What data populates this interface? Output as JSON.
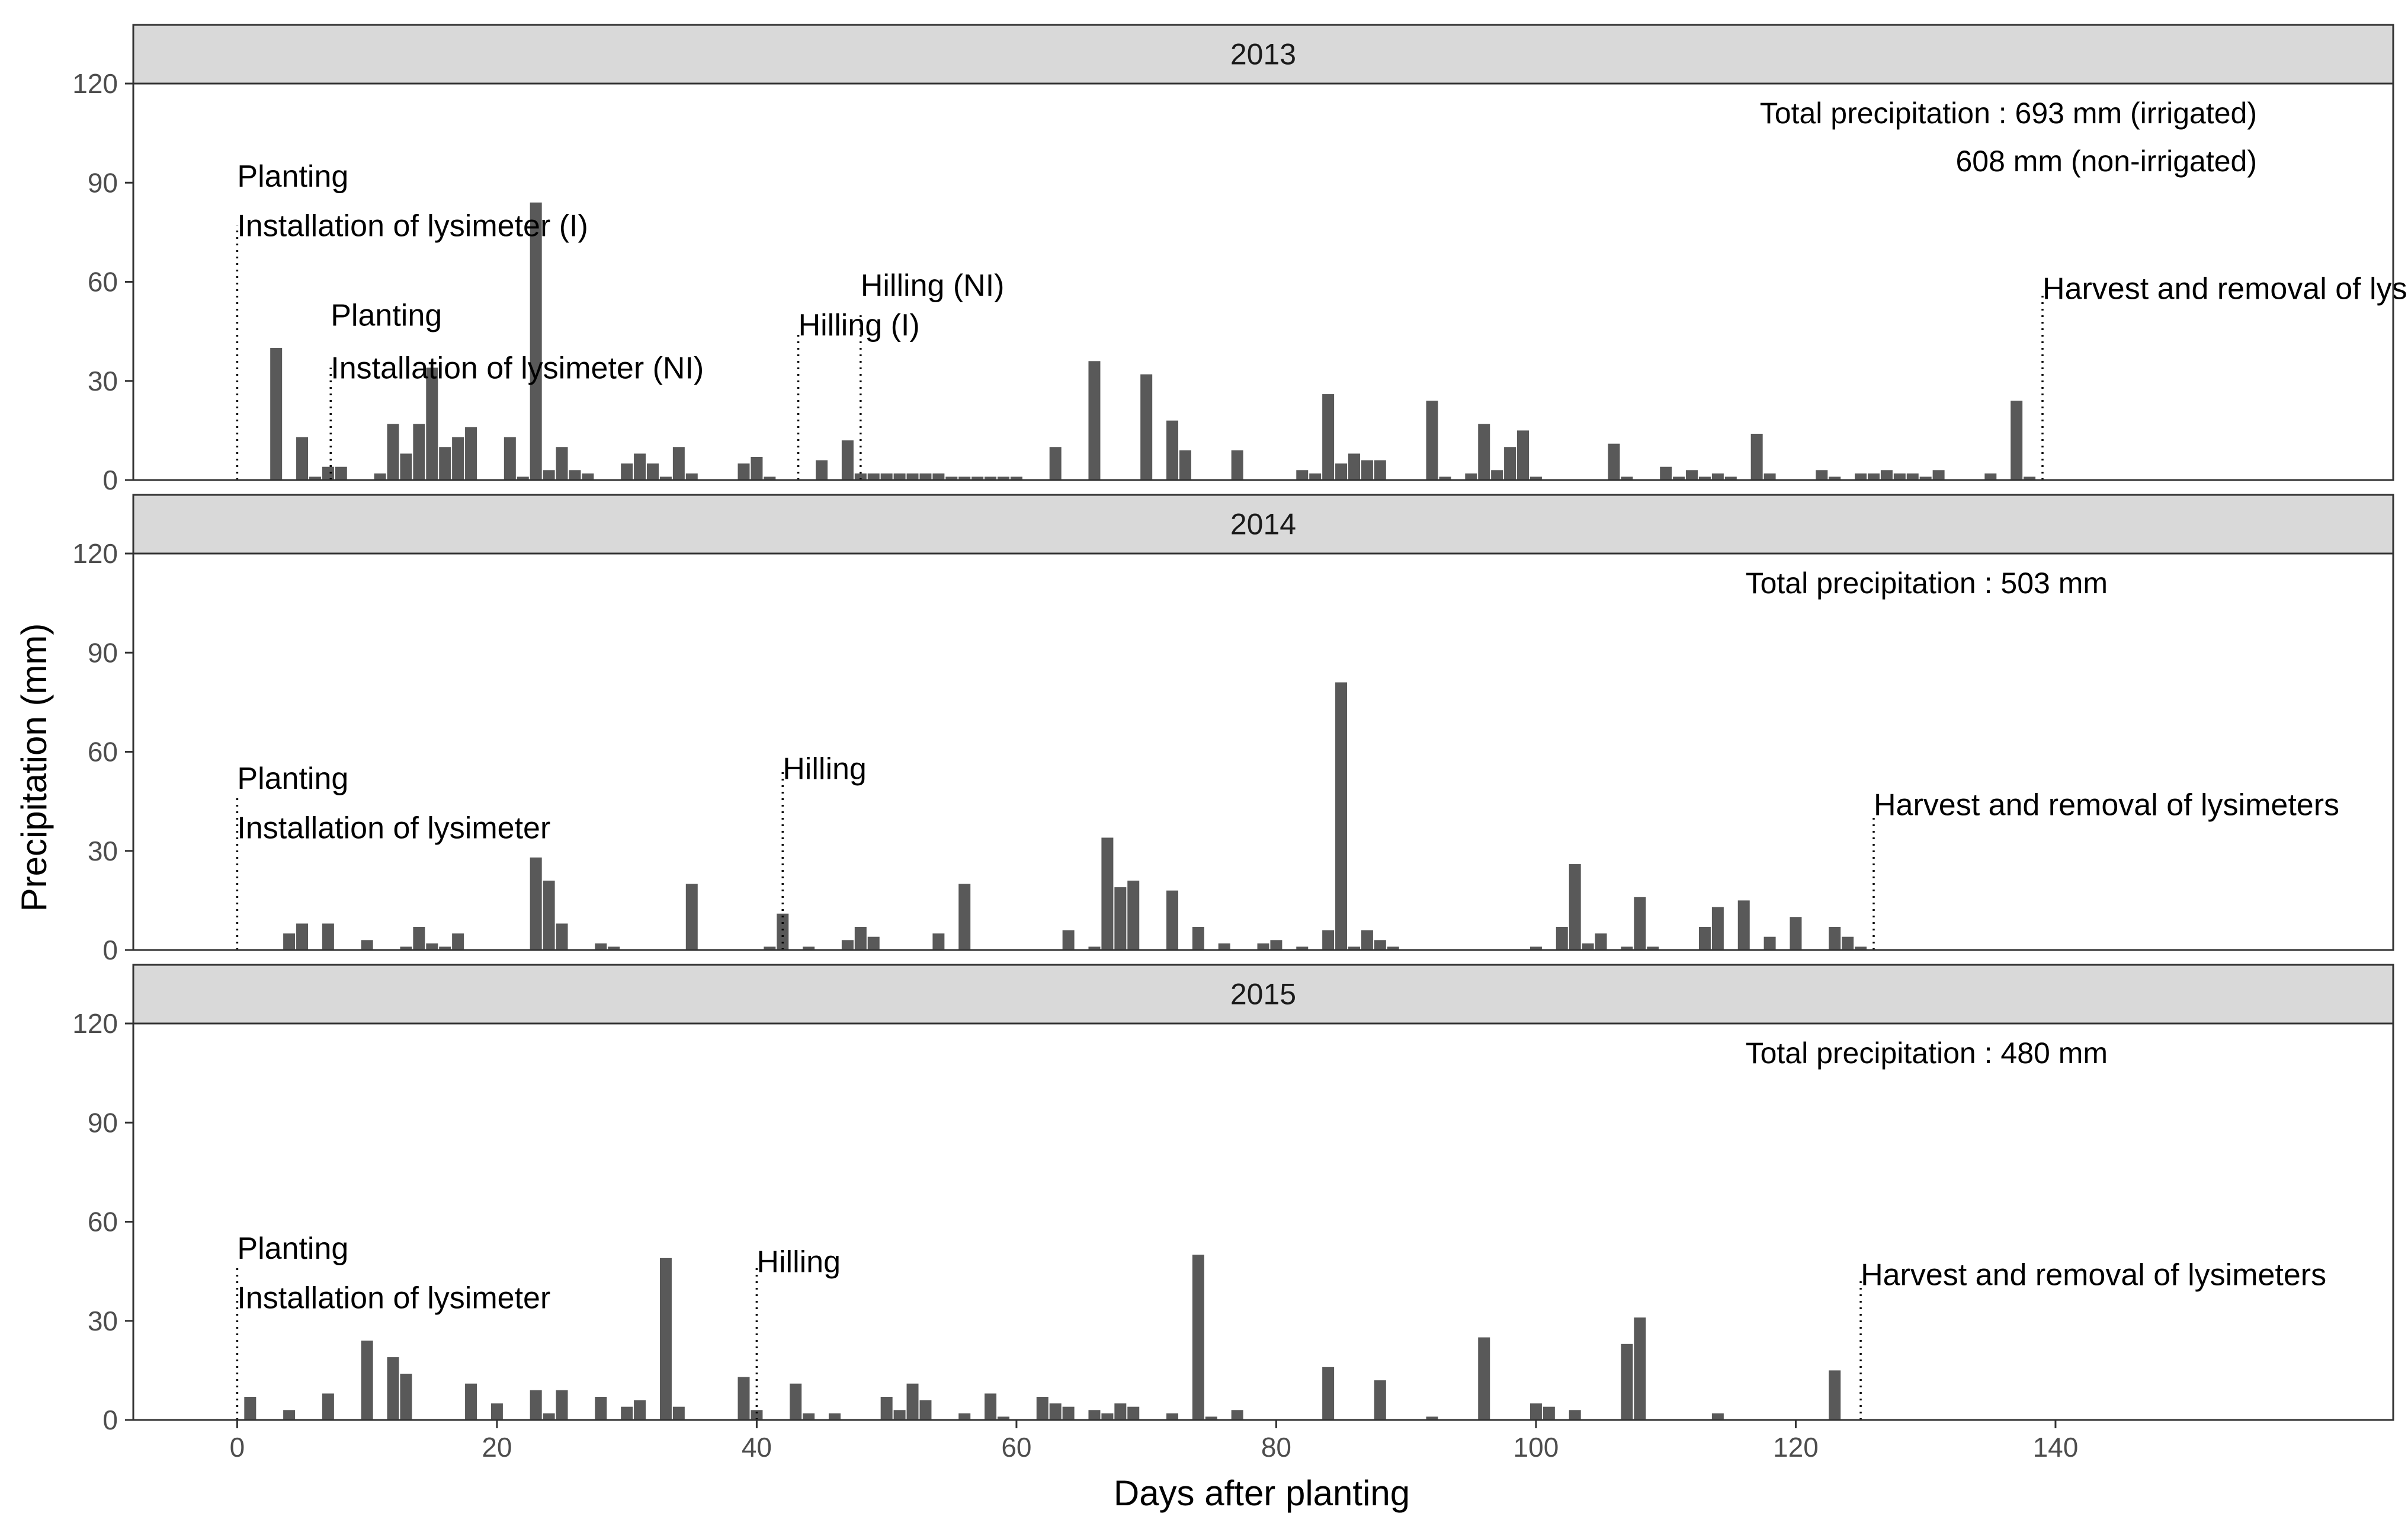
{
  "chart_data": {
    "type": "bar",
    "xlabel": "Days after planting",
    "ylabel": "Precipitation (mm)",
    "xlim": [
      -8,
      166
    ],
    "ylim": [
      0,
      120
    ],
    "x_ticks": [
      0,
      20,
      40,
      60,
      80,
      100,
      120,
      140
    ],
    "y_ticks": [
      0,
      30,
      60,
      90,
      120
    ],
    "bar_color": "#595959",
    "strip_color": "#d9d9d9",
    "panels": [
      {
        "strip": "2013",
        "total_lines": [
          "Total precipitation : 693 mm (irrigated)",
          "608 mm (non-irrigated)"
        ],
        "markers": [
          {
            "x": 0,
            "top": 77,
            "labels": [
              {
                "text": "Planting",
                "y": 92
              },
              {
                "text": "Installation of lysimeter (I)",
                "y": 77
              }
            ]
          },
          {
            "x": 7.2,
            "top": 34,
            "labels": [
              {
                "text": "Planting",
                "y": 50
              },
              {
                "text": "Installation of lysimeter (NI)",
                "y": 34
              }
            ]
          },
          {
            "x": 43.2,
            "top": 45,
            "labels": [
              {
                "text": "Hilling (I)",
                "y": 47
              }
            ]
          },
          {
            "x": 48,
            "top": 51,
            "labels": [
              {
                "text": "Hilling (NI)",
                "y": 59
              }
            ]
          },
          {
            "x": 139,
            "top": 57,
            "labels": [
              {
                "text": "Harvest and removal of lysimeters",
                "y": 58
              }
            ]
          }
        ],
        "bars": [
          [
            3,
            40
          ],
          [
            5,
            13
          ],
          [
            6,
            1
          ],
          [
            7,
            4
          ],
          [
            8,
            4
          ],
          [
            11,
            2
          ],
          [
            12,
            17
          ],
          [
            13,
            8
          ],
          [
            14,
            17
          ],
          [
            15,
            34
          ],
          [
            16,
            10
          ],
          [
            17,
            13
          ],
          [
            18,
            16
          ],
          [
            21,
            13
          ],
          [
            22,
            1
          ],
          [
            23,
            84
          ],
          [
            24,
            3
          ],
          [
            25,
            10
          ],
          [
            26,
            3
          ],
          [
            27,
            2
          ],
          [
            30,
            5
          ],
          [
            31,
            8
          ],
          [
            32,
            5
          ],
          [
            33,
            1
          ],
          [
            34,
            10
          ],
          [
            35,
            2
          ],
          [
            39,
            5
          ],
          [
            40,
            7
          ],
          [
            41,
            1
          ],
          [
            45,
            6
          ],
          [
            47,
            12
          ],
          [
            48,
            2
          ],
          [
            49,
            2
          ],
          [
            50,
            2
          ],
          [
            51,
            2
          ],
          [
            52,
            2
          ],
          [
            53,
            2
          ],
          [
            54,
            2
          ],
          [
            55,
            1
          ],
          [
            56,
            1
          ],
          [
            57,
            1
          ],
          [
            58,
            1
          ],
          [
            59,
            1
          ],
          [
            60,
            1
          ],
          [
            63,
            10
          ],
          [
            66,
            36
          ],
          [
            70,
            32
          ],
          [
            72,
            18
          ],
          [
            73,
            9
          ],
          [
            77,
            9
          ],
          [
            82,
            3
          ],
          [
            83,
            2
          ],
          [
            84,
            26
          ],
          [
            85,
            5
          ],
          [
            86,
            8
          ],
          [
            87,
            6
          ],
          [
            88,
            6
          ],
          [
            92,
            24
          ],
          [
            93,
            1
          ],
          [
            95,
            2
          ],
          [
            96,
            17
          ],
          [
            97,
            3
          ],
          [
            98,
            10
          ],
          [
            99,
            15
          ],
          [
            100,
            1
          ],
          [
            106,
            11
          ],
          [
            107,
            1
          ],
          [
            110,
            4
          ],
          [
            111,
            1
          ],
          [
            112,
            3
          ],
          [
            113,
            1
          ],
          [
            114,
            2
          ],
          [
            115,
            1
          ],
          [
            117,
            14
          ],
          [
            118,
            2
          ],
          [
            122,
            3
          ],
          [
            123,
            1
          ],
          [
            125,
            2
          ],
          [
            126,
            2
          ],
          [
            127,
            3
          ],
          [
            128,
            2
          ],
          [
            129,
            2
          ],
          [
            130,
            1
          ],
          [
            131,
            3
          ],
          [
            135,
            2
          ],
          [
            137,
            24
          ],
          [
            138,
            1
          ]
        ]
      },
      {
        "strip": "2014",
        "total_lines": [
          "Total precipitation : 503 mm"
        ],
        "markers": [
          {
            "x": 0,
            "top": 46,
            "labels": [
              {
                "text": "Planting",
                "y": 52
              },
              {
                "text": "Installation of lysimeter",
                "y": 37
              }
            ]
          },
          {
            "x": 42,
            "top": 54,
            "labels": [
              {
                "text": "Hilling",
                "y": 55
              }
            ]
          },
          {
            "x": 126,
            "top": 41,
            "labels": [
              {
                "text": "Harvest and removal of lysimeters",
                "y": 44
              }
            ]
          }
        ],
        "bars": [
          [
            4,
            5
          ],
          [
            5,
            8
          ],
          [
            7,
            8
          ],
          [
            10,
            3
          ],
          [
            13,
            1
          ],
          [
            14,
            7
          ],
          [
            15,
            2
          ],
          [
            16,
            1
          ],
          [
            17,
            5
          ],
          [
            23,
            28
          ],
          [
            24,
            21
          ],
          [
            25,
            8
          ],
          [
            28,
            2
          ],
          [
            29,
            1
          ],
          [
            35,
            20
          ],
          [
            41,
            1
          ],
          [
            42,
            11
          ],
          [
            44,
            1
          ],
          [
            47,
            3
          ],
          [
            48,
            7
          ],
          [
            49,
            4
          ],
          [
            54,
            5
          ],
          [
            56,
            20
          ],
          [
            64,
            6
          ],
          [
            66,
            1
          ],
          [
            67,
            34
          ],
          [
            68,
            19
          ],
          [
            69,
            21
          ],
          [
            72,
            18
          ],
          [
            74,
            7
          ],
          [
            76,
            2
          ],
          [
            79,
            2
          ],
          [
            80,
            3
          ],
          [
            82,
            1
          ],
          [
            84,
            6
          ],
          [
            85,
            81
          ],
          [
            86,
            1
          ],
          [
            87,
            6
          ],
          [
            88,
            3
          ],
          [
            89,
            1
          ],
          [
            100,
            1
          ],
          [
            102,
            7
          ],
          [
            103,
            26
          ],
          [
            104,
            2
          ],
          [
            105,
            5
          ],
          [
            107,
            1
          ],
          [
            108,
            16
          ],
          [
            109,
            1
          ],
          [
            113,
            7
          ],
          [
            114,
            13
          ],
          [
            116,
            15
          ],
          [
            118,
            4
          ],
          [
            120,
            10
          ],
          [
            123,
            7
          ],
          [
            124,
            4
          ],
          [
            125,
            1
          ]
        ]
      },
      {
        "strip": "2015",
        "total_lines": [
          "Total precipitation : 480 mm"
        ],
        "markers": [
          {
            "x": 0,
            "top": 46,
            "labels": [
              {
                "text": "Planting",
                "y": 52
              },
              {
                "text": "Installation of lysimeter",
                "y": 37
              }
            ]
          },
          {
            "x": 40,
            "top": 46,
            "labels": [
              {
                "text": "Hilling",
                "y": 48
              }
            ]
          },
          {
            "x": 125,
            "top": 42,
            "labels": [
              {
                "text": "Harvest and removal of lysimeters",
                "y": 44
              }
            ]
          }
        ],
        "bars": [
          [
            1,
            7
          ],
          [
            4,
            3
          ],
          [
            7,
            8
          ],
          [
            10,
            24
          ],
          [
            12,
            19
          ],
          [
            13,
            14
          ],
          [
            18,
            11
          ],
          [
            20,
            5
          ],
          [
            23,
            9
          ],
          [
            24,
            2
          ],
          [
            25,
            9
          ],
          [
            28,
            7
          ],
          [
            30,
            4
          ],
          [
            31,
            6
          ],
          [
            33,
            49
          ],
          [
            34,
            4
          ],
          [
            39,
            13
          ],
          [
            40,
            3
          ],
          [
            43,
            11
          ],
          [
            44,
            2
          ],
          [
            46,
            2
          ],
          [
            50,
            7
          ],
          [
            51,
            3
          ],
          [
            52,
            11
          ],
          [
            53,
            6
          ],
          [
            56,
            2
          ],
          [
            58,
            8
          ],
          [
            59,
            1
          ],
          [
            62,
            7
          ],
          [
            63,
            5
          ],
          [
            64,
            4
          ],
          [
            66,
            3
          ],
          [
            67,
            2
          ],
          [
            68,
            5
          ],
          [
            69,
            4
          ],
          [
            72,
            2
          ],
          [
            74,
            50
          ],
          [
            75,
            1
          ],
          [
            77,
            3
          ],
          [
            84,
            16
          ],
          [
            88,
            12
          ],
          [
            92,
            1
          ],
          [
            96,
            25
          ],
          [
            100,
            5
          ],
          [
            101,
            4
          ],
          [
            103,
            3
          ],
          [
            107,
            23
          ],
          [
            108,
            31
          ],
          [
            114,
            2
          ],
          [
            123,
            15
          ]
        ]
      }
    ]
  }
}
